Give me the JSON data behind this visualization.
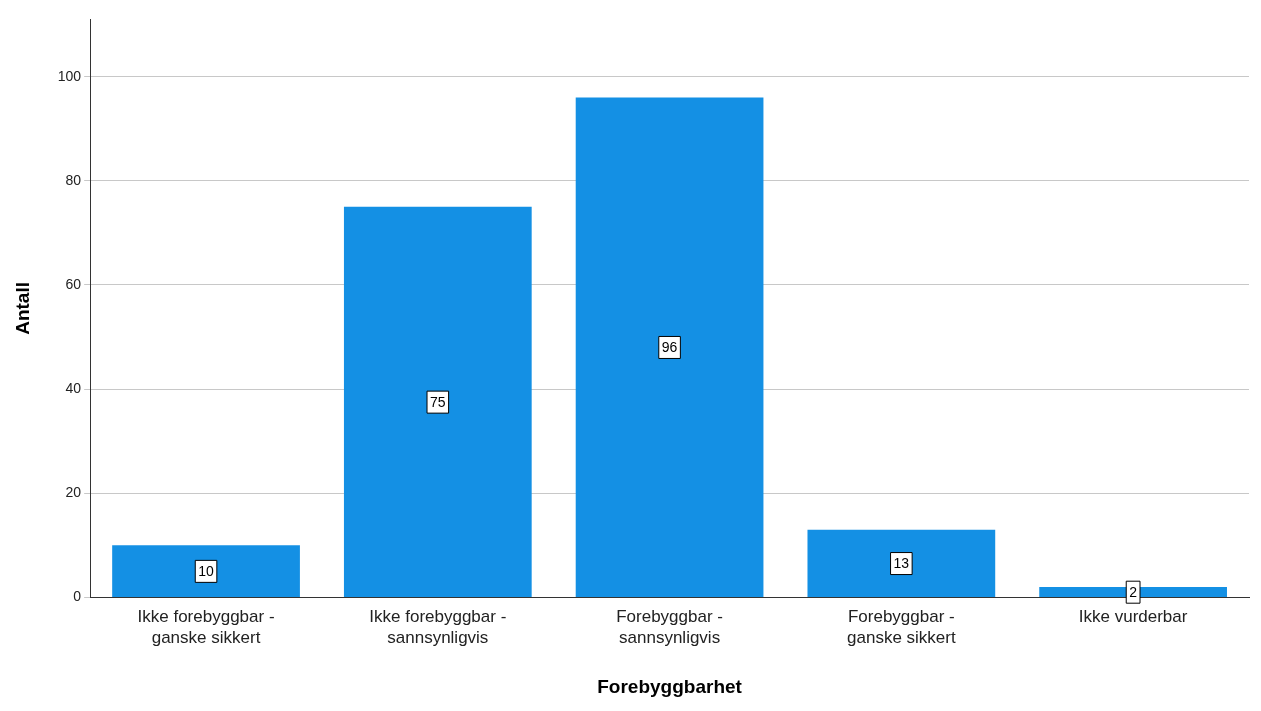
{
  "chart_data": {
    "type": "bar",
    "xlabel": "Forebyggbarhet",
    "ylabel": "Antall",
    "categories": [
      "Ikke forebyggbar - ganske sikkert",
      "Ikke forebyggbar - sannsynligvis",
      "Forebyggbar - sannsynligvis",
      "Forebyggbar - ganske sikkert",
      "Ikke vurderbar"
    ],
    "values": [
      10,
      75,
      96,
      13,
      2
    ],
    "color": "#1490e4",
    "ylim": [
      0,
      111
    ],
    "yticks": [
      0,
      20,
      40,
      60,
      80,
      100
    ],
    "grid": "y",
    "data_labels": true,
    "legend": false
  }
}
